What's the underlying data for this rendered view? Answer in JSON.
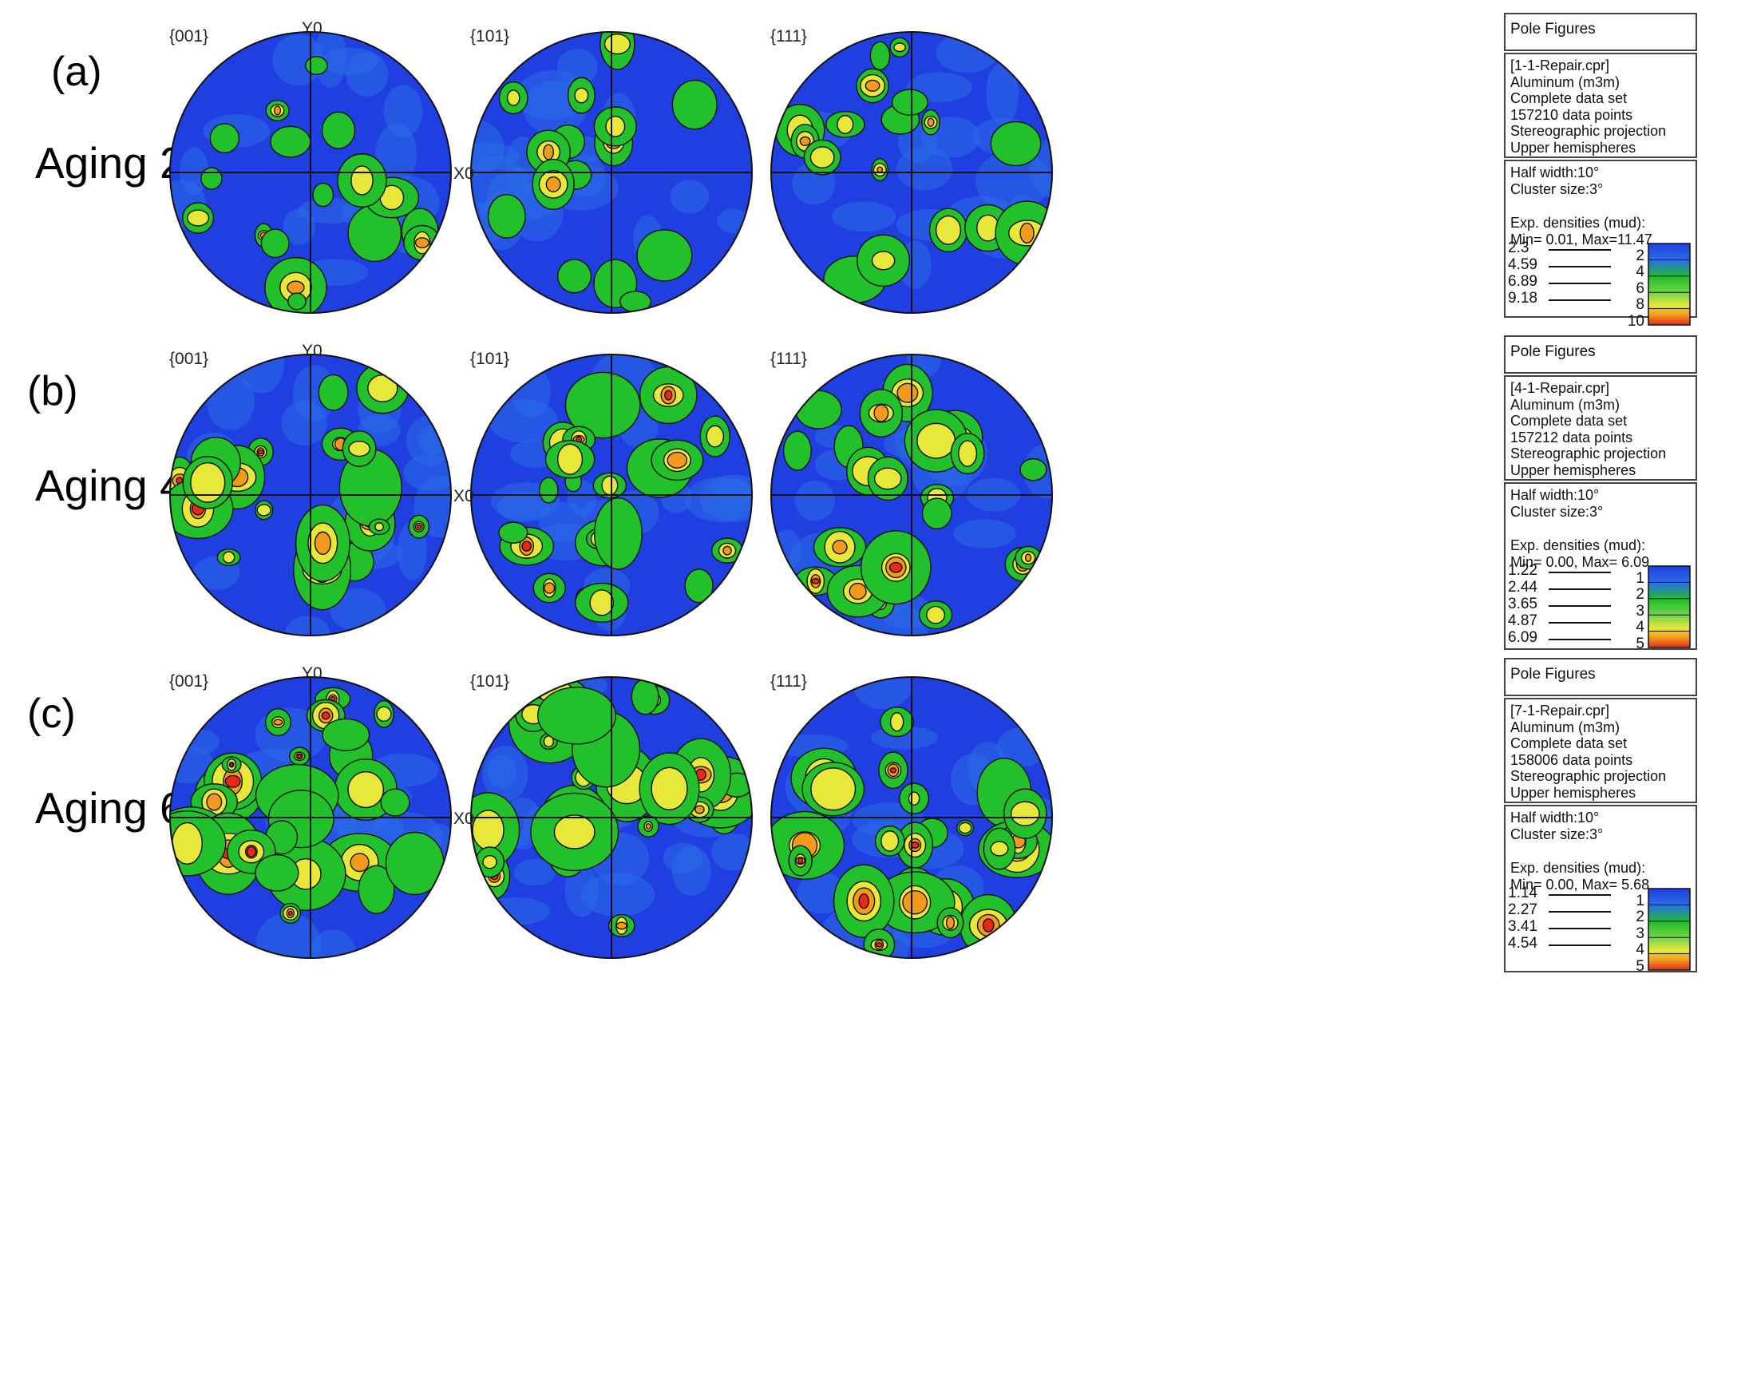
{
  "rows": [
    {
      "panel": "(a)",
      "aging": "Aging 2h",
      "figures": [
        "{001}",
        "{101}",
        "{111}"
      ],
      "y_axis": "Y0",
      "x_axis": "X0",
      "box_title": "Pole Figures",
      "info": [
        "[1-1-Repair.cpr]",
        "Aluminum (m3m)",
        "Complete data set",
        "157210 data points",
        "Stereographic projection",
        "Upper hemispheres"
      ],
      "params": [
        "Half width:10°",
        "Cluster size:3°",
        "",
        "Exp. densities (mud):",
        "Min= 0.01, Max=11.47"
      ],
      "contour_levels": [
        "2.3",
        "4.59",
        "6.89",
        "9.18"
      ],
      "colorbar_ticks": [
        "2",
        "4",
        "6",
        "8",
        "10"
      ]
    },
    {
      "panel": "(b)",
      "aging": "Aging 4h",
      "figures": [
        "{001}",
        "{101}",
        "{111}"
      ],
      "y_axis": "Y0",
      "x_axis": "X0",
      "box_title": "Pole Figures",
      "info": [
        "[4-1-Repair.cpr]",
        "Aluminum (m3m)",
        "Complete data set",
        "157212 data points",
        "Stereographic projection",
        "Upper hemispheres"
      ],
      "params": [
        "Half width:10°",
        "Cluster size:3°",
        "",
        "Exp. densities (mud):",
        "Min= 0.00, Max= 6.09"
      ],
      "contour_levels": [
        "1.22",
        "2.44",
        "3.65",
        "4.87",
        "6.09"
      ],
      "colorbar_ticks": [
        "1",
        "2",
        "3",
        "4",
        "5"
      ]
    },
    {
      "panel": "(c)",
      "aging": "Aging 6h",
      "figures": [
        "{001}",
        "{101}",
        "{111}"
      ],
      "y_axis": "Y0",
      "x_axis": "X0",
      "box_title": "Pole Figures",
      "info": [
        "[7-1-Repair.cpr]",
        "Aluminum (m3m)",
        "Complete data set",
        "158006 data points",
        "Stereographic projection",
        "Upper hemispheres"
      ],
      "params": [
        "Half width:10°",
        "Cluster size:3°",
        "",
        "Exp. densities (mud):",
        "Min= 0.00, Max= 5.68"
      ],
      "contour_levels": [
        "1.14",
        "2.27",
        "3.41",
        "4.54"
      ],
      "colorbar_ticks": [
        "1",
        "2",
        "3",
        "4",
        "5"
      ]
    }
  ],
  "colors": {
    "background_blue": "#1f3fe0",
    "mid_blue": "#2a6ce8",
    "green": "#22c02a",
    "yellow": "#e8e83a",
    "orange": "#f39a1c",
    "red": "#e8281c",
    "contour": "#111111"
  }
}
